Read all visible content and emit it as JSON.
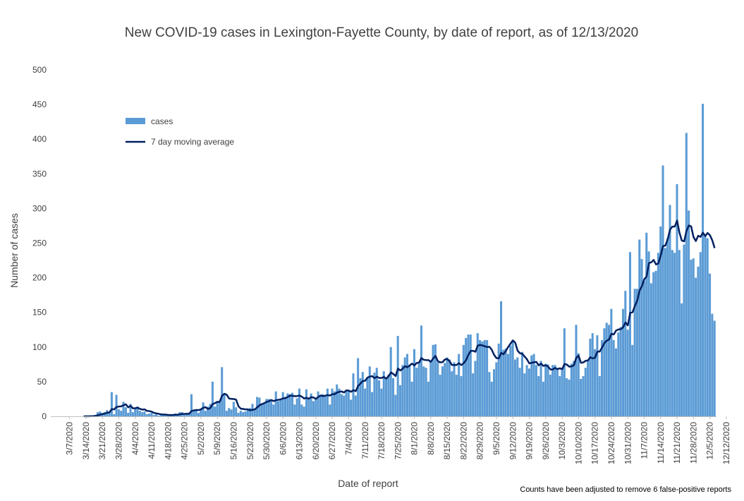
{
  "chart_data": {
    "type": "bar",
    "title": "New COVID-19 cases in Lexington-Fayette County, by date of report, as of 12/13/2020",
    "xlabel": "Date of report",
    "ylabel": "Number of cases",
    "ylim": [
      0,
      500
    ],
    "yticks": [
      "0",
      "50",
      "100",
      "150",
      "200",
      "250",
      "300",
      "350",
      "400",
      "450",
      "500"
    ],
    "xticks": [
      "3/7/2020",
      "3/14/2020",
      "3/21/2020",
      "3/28/2020",
      "4/4/2020",
      "4/11/2020",
      "4/18/2020",
      "4/25/2020",
      "5/2/2020",
      "5/9/2020",
      "5/16/2020",
      "5/23/2020",
      "5/30/2020",
      "6/6/2020",
      "6/13/2020",
      "6/20/2020",
      "6/27/2020",
      "7/4/2020",
      "7/11/2020",
      "7/18/2020",
      "7/25/2020",
      "8/1/2020",
      "8/8/2020",
      "8/15/2020",
      "8/22/2020",
      "8/29/2020",
      "9/5/2020",
      "9/12/2020",
      "9/19/2020",
      "9/26/2020",
      "10/3/2020",
      "10/10/2020",
      "10/17/2020",
      "10/24/2020",
      "10/31/2020",
      "11/7/2020",
      "11/14/2020",
      "11/21/2020",
      "11/28/2020",
      "12/5/2020",
      "12/12/2020"
    ],
    "x_start_date": "2020-03-07",
    "legend_position": "upper-left",
    "grid": false,
    "note": "Counts have been adjusted to remove 6 false-positive reports",
    "series": [
      {
        "name": "cases",
        "color": "#5b9bd5",
        "values": [
          0,
          0,
          0,
          0,
          0,
          0,
          0,
          0,
          0,
          1,
          1,
          2,
          6,
          7,
          5,
          6,
          9,
          5,
          35,
          3,
          31,
          10,
          8,
          21,
          13,
          5,
          18,
          6,
          11,
          14,
          8,
          6,
          7,
          3,
          4,
          5,
          2,
          3,
          1,
          2,
          2,
          2,
          2,
          1,
          3,
          4,
          2,
          6,
          6,
          2,
          3,
          3,
          32,
          8,
          10,
          5,
          9,
          20,
          8,
          14,
          18,
          50,
          14,
          22,
          20,
          71,
          33,
          8,
          12,
          10,
          21,
          13,
          5,
          8,
          6,
          7,
          10,
          12,
          18,
          10,
          28,
          27,
          18,
          20,
          25,
          25,
          22,
          17,
          36,
          22,
          24,
          35,
          28,
          33,
          32,
          34,
          17,
          26,
          40,
          17,
          14,
          39,
          25,
          33,
          22,
          26,
          36,
          30,
          32,
          29,
          40,
          17,
          40,
          36,
          46,
          40,
          32,
          30,
          38,
          38,
          24,
          62,
          30,
          84,
          55,
          64,
          40,
          56,
          72,
          35,
          63,
          70,
          52,
          40,
          65,
          56,
          60,
          100,
          55,
          31,
          116,
          45,
          74,
          85,
          90,
          73,
          50,
          97,
          70,
          78,
          131,
          72,
          70,
          50,
          80,
          103,
          104,
          78,
          60,
          72,
          77,
          85,
          82,
          65,
          78,
          60,
          90,
          58,
          103,
          113,
          118,
          118,
          62,
          80,
          120,
          110,
          108,
          110,
          110,
          64,
          50,
          68,
          78,
          105,
          166,
          96,
          98,
          90,
          102,
          110,
          82,
          85,
          70,
          93,
          62,
          74,
          69,
          88,
          90,
          74,
          58,
          80,
          50,
          76,
          75,
          60,
          74,
          74,
          68,
          58,
          67,
          127,
          55,
          53,
          76,
          80,
          132,
          91,
          54,
          58,
          70,
          80,
          112,
          120,
          97,
          117,
          58,
          110,
          127,
          135,
          132,
          155,
          110,
          98,
          121,
          129,
          155,
          181,
          125,
          237,
          103,
          184,
          184,
          255,
          227,
          195,
          265,
          238,
          192,
          208,
          210,
          236,
          274,
          362,
          243,
          257,
          305,
          240,
          236,
          335,
          240,
          163,
          248,
          409,
          297,
          226,
          228,
          200,
          216,
          237,
          451,
          263,
          257,
          206,
          148,
          138
        ]
      },
      {
        "name": "7 day moving average",
        "color": "#002060",
        "derived": "7-day trailing average of cases"
      }
    ]
  }
}
